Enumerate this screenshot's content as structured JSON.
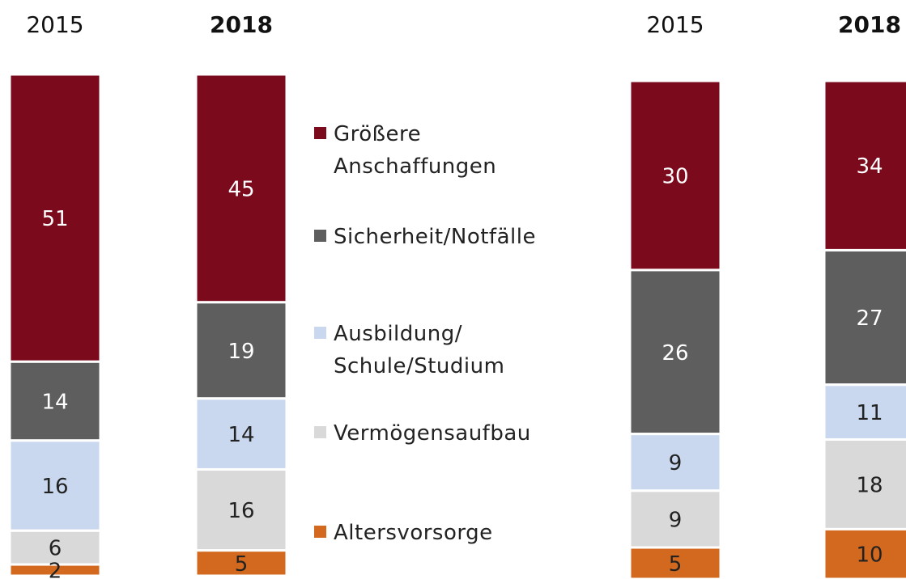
{
  "chart_data": {
    "type": "stacked_bar",
    "categories": [
      "2015",
      "2018",
      "2015",
      "2018"
    ],
    "series": [
      {
        "name": "Größere Anschaffungen",
        "color": "#7a0a1c",
        "values": [
          51,
          45,
          30,
          34
        ]
      },
      {
        "name": "Sicherheit/Notfälle",
        "color": "#5e5e5e",
        "values": [
          14,
          19,
          26,
          27
        ]
      },
      {
        "name": "Ausbildung/ Schule/Studium",
        "color": "#c9d8ef",
        "values": [
          16,
          14,
          9,
          11
        ]
      },
      {
        "name": "Vermögensaufbau",
        "color": "#d9d9d9",
        "values": [
          6,
          16,
          9,
          18
        ]
      },
      {
        "name": "Altersvorsorge",
        "color": "#d2691e",
        "values": [
          2,
          5,
          5,
          10
        ]
      }
    ]
  }
}
